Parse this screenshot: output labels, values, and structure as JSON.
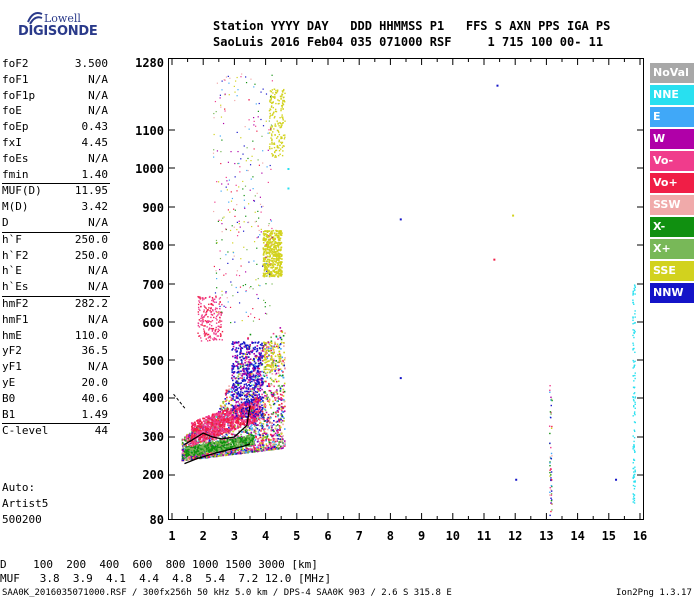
{
  "logo": {
    "line1": "Lowell",
    "line2": "DIGISONDE"
  },
  "header": {
    "row1": "Station YYYY DAY   DDD HHMMSS P1   FFS S AXN PPS IGA PS",
    "row2": "SaoLuis 2016 Feb04 035 071000 RSF     1 715 100 00- 11"
  },
  "params": [
    {
      "label": "foF2",
      "value": "3.500"
    },
    {
      "label": "foF1",
      "value": "N/A"
    },
    {
      "label": "foF1p",
      "value": "N/A"
    },
    {
      "label": "foE",
      "value": "N/A"
    },
    {
      "label": "foEp",
      "value": "0.43"
    },
    {
      "label": "fxI",
      "value": "4.45"
    },
    {
      "label": "foEs",
      "value": "N/A"
    },
    {
      "label": "fmin",
      "value": "1.40"
    },
    {
      "label": "MUF(D)",
      "value": "11.95"
    },
    {
      "label": "M(D)",
      "value": "3.42"
    },
    {
      "label": "D",
      "value": "N/A"
    },
    {
      "label": "h`F",
      "value": "250.0"
    },
    {
      "label": "h`F2",
      "value": "250.0"
    },
    {
      "label": "h`E",
      "value": "N/A"
    },
    {
      "label": "h`Es",
      "value": "N/A"
    },
    {
      "label": "hmF2",
      "value": "282.2"
    },
    {
      "label": "hmF1",
      "value": "N/A"
    },
    {
      "label": "hmE",
      "value": "110.0"
    },
    {
      "label": "yF2",
      "value": "36.5"
    },
    {
      "label": "yF1",
      "value": "N/A"
    },
    {
      "label": "yE",
      "value": "20.0"
    },
    {
      "label": "B0",
      "value": "40.6"
    },
    {
      "label": "B1",
      "value": "1.49"
    },
    {
      "label": "C-level",
      "value": "44"
    }
  ],
  "auto": {
    "line1": "Auto:",
    "line2": "Artist5",
    "line3": "500200"
  },
  "chart_data": {
    "type": "scatter",
    "xlim": [
      1,
      16
    ],
    "ylim": [
      80,
      1280
    ],
    "xticks": [
      "1",
      "2",
      "3",
      "4",
      "5",
      "6",
      "7",
      "8",
      "9",
      "10",
      "11",
      "12",
      "13",
      "14",
      "15",
      "16"
    ],
    "yticks": [
      "1280",
      "1100",
      "1000",
      "900",
      "800",
      "700",
      "600",
      "500",
      "400",
      "300",
      "200",
      "80"
    ],
    "traces": [
      {
        "name": "F2 trace",
        "color": "#000000",
        "points": [
          [
            1.4,
            230
          ],
          [
            1.8,
            243
          ],
          [
            2.4,
            258
          ],
          [
            3.0,
            270
          ],
          [
            3.3,
            276
          ],
          [
            3.5,
            282
          ]
        ]
      },
      {
        "name": "O trace",
        "color": "#000000",
        "points": [
          [
            1.4,
            280
          ],
          [
            1.7,
            295
          ],
          [
            2.0,
            310
          ],
          [
            2.3,
            300
          ],
          [
            2.6,
            295
          ],
          [
            3.0,
            300
          ],
          [
            3.4,
            330
          ],
          [
            3.5,
            380
          ]
        ]
      }
    ]
  },
  "legend": [
    {
      "label": "NoVal",
      "color": "#a8a8a8"
    },
    {
      "label": "NNE",
      "color": "#28e0f0"
    },
    {
      "label": "E",
      "color": "#40a8f8"
    },
    {
      "label": "W",
      "color": "#b000a8"
    },
    {
      "label": "Vo-",
      "color": "#f03c8c"
    },
    {
      "label": "Vo+",
      "color": "#f01e46"
    },
    {
      "label": "SSW",
      "color": "#f0aaaa"
    },
    {
      "label": "X-",
      "color": "#109010"
    },
    {
      "label": "X+",
      "color": "#78b858"
    },
    {
      "label": "SSE",
      "color": "#d2d21e"
    },
    {
      "label": "NNW",
      "color": "#1414c8"
    }
  ],
  "muf_table": {
    "row1": "D    100  200  400  600  800 1000 1500 3000 [km]",
    "row2": "MUF   3.8  3.9  4.1  4.4  4.8  5.4  7.2 12.0 [MHz]"
  },
  "footer": {
    "left": "SAA0K_2016035071000.RSF / 300fx256h 50 kHz 5.0 km / DPS-4 SAA0K 903 / 2.6 S 315.8 E",
    "right": "Ion2Png 1.3.17"
  }
}
